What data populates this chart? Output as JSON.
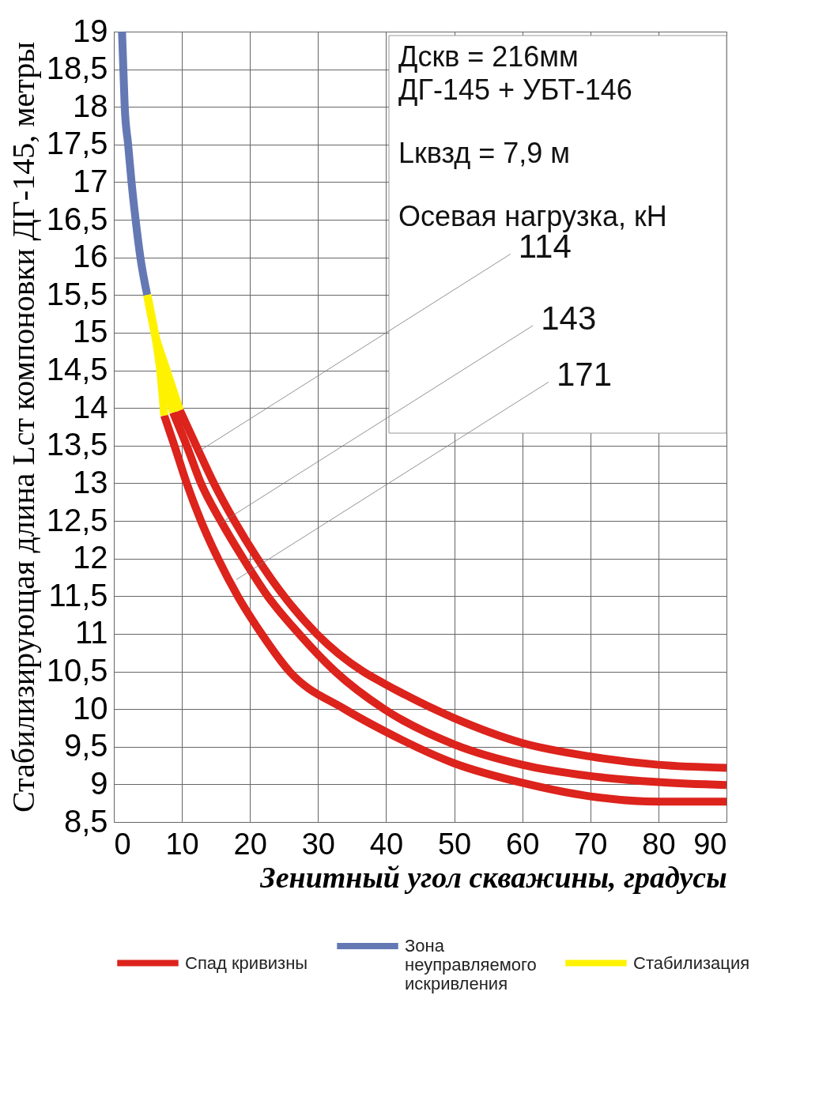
{
  "chart_data": {
    "type": "line",
    "xlabel": "Зенитный угол скважины, градусы",
    "ylabel": "Стабилизирующая длина Lст компоновки ДГ-145, метры",
    "xlim": [
      0,
      90
    ],
    "xticks": [
      0,
      10,
      20,
      30,
      40,
      50,
      60,
      70,
      80,
      90
    ],
    "ylim": [
      8.5,
      19
    ],
    "yticks": [
      {
        "value": 8.5,
        "label": "8,5"
      },
      9,
      {
        "value": 9.5,
        "label": "9,5"
      },
      10,
      {
        "value": 10.5,
        "label": "10,5"
      },
      11,
      {
        "value": 11.5,
        "label": "11,5"
      },
      12,
      {
        "value": 12.5,
        "label": "12,5"
      },
      13,
      {
        "value": 13.5,
        "label": "13,5"
      },
      14,
      {
        "value": 14.5,
        "label": "14,5"
      },
      15,
      {
        "value": 15.5,
        "label": "15,5"
      },
      16,
      {
        "value": 16.5,
        "label": "16,5"
      },
      17,
      {
        "value": 17.5,
        "label": "17,5"
      },
      18,
      {
        "value": 18.5,
        "label": "18,5"
      },
      19
    ],
    "grid": true,
    "legend": "bottom",
    "line_style": "solid",
    "marker": "none",
    "series": [
      {
        "name": "Спад кривизны",
        "color": "#dc231c",
        "x": [
          7.4,
          8.9,
          10.7,
          12.8,
          15.3,
          18.2,
          21.7,
          25.8,
          33.9,
          39.7,
          50,
          60,
          70,
          80,
          90
        ],
        "values": [
          13.9,
          13.5,
          13.0,
          12.5,
          12.0,
          11.5,
          11.0,
          10.5,
          10.0,
          9.71,
          9.28,
          9.02,
          8.84,
          8.77,
          8.77
        ]
      },
      {
        "color": "#dc231c",
        "x": [
          8.7,
          10.7,
          12.8,
          15.7,
          19.0,
          22.6,
          27.2,
          32.5,
          39.7,
          50,
          60,
          70,
          80,
          90
        ],
        "values": [
          13.94,
          13.5,
          13.0,
          12.5,
          12.0,
          11.5,
          11.0,
          10.5,
          10.0,
          9.53,
          9.26,
          9.11,
          9.03,
          8.99
        ]
      },
      {
        "color": "#dc231c",
        "x": [
          9.7,
          12.1,
          14.7,
          17.7,
          21.1,
          25.0,
          29.8,
          36.6,
          39.7,
          50,
          60,
          70,
          80,
          90
        ],
        "values": [
          13.97,
          13.5,
          13.0,
          12.5,
          12.0,
          11.5,
          11.0,
          10.5,
          10.34,
          9.88,
          9.55,
          9.37,
          9.26,
          9.22
        ]
      },
      {
        "name": "Зона неуправляемого искривления",
        "color": "#6478b4",
        "x": [
          1.2,
          1.4,
          1.6,
          2.1,
          2.6,
          3.2,
          3.9,
          4.9
        ],
        "values": [
          19,
          18.5,
          18,
          17.5,
          17,
          16.5,
          16,
          15.5
        ]
      },
      {
        "name": "Стабилизация",
        "color": "#fff200",
        "x": [
          4.9,
          6.0,
          6.8,
          7.4
        ],
        "values": [
          15.5,
          15.0,
          14.5,
          13.9
        ]
      },
      {
        "color": "#fff200",
        "x": [
          4.9,
          6.0,
          7.2,
          8.7
        ],
        "values": [
          15.5,
          15.0,
          14.5,
          13.94
        ]
      },
      {
        "color": "#fff200",
        "x": [
          4.9,
          6.0,
          7.4,
          9.7
        ],
        "values": [
          15.5,
          15.0,
          14.6,
          13.97
        ]
      }
    ],
    "annotations": [
      "Дскв = 216мм",
      "ДГ-145 + УБТ-146",
      "Lквзд = 7,9 м",
      "Осевая нагрузка, кН",
      {
        "text": "114",
        "x": 12.4,
        "y": 13.42
      },
      {
        "text": "143",
        "x": 15.7,
        "y": 12.47
      },
      {
        "text": "171",
        "x": 18.0,
        "y": 11.72
      }
    ]
  }
}
